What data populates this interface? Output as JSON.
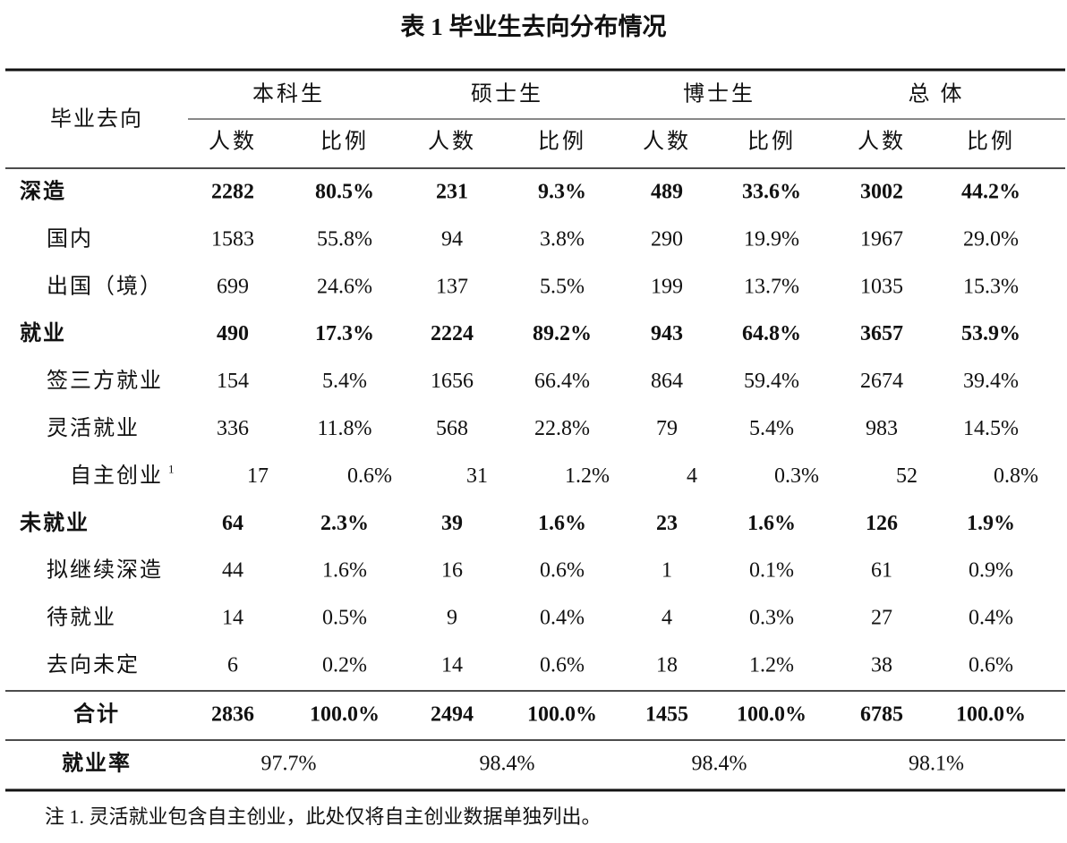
{
  "title": "表 1 毕业生去向分布情况",
  "table": {
    "corner": "毕业去向",
    "groups": [
      "本科生",
      "硕士生",
      "博士生",
      "总 体"
    ],
    "subheaders": [
      "人数",
      "比例",
      "人数",
      "比例",
      "人数",
      "比例",
      "人数",
      "比例"
    ],
    "rows": [
      {
        "label": "深造",
        "cells": [
          "2282",
          "80.5%",
          "231",
          "9.3%",
          "489",
          "33.6%",
          "3002",
          "44.2%"
        ],
        "children": [
          {
            "label": "国内",
            "cells": [
              "1583",
              "55.8%",
              "94",
              "3.8%",
              "290",
              "19.9%",
              "1967",
              "29.0%"
            ]
          },
          {
            "label": "出国（境）",
            "cells": [
              "699",
              "24.6%",
              "137",
              "5.5%",
              "199",
              "13.7%",
              "1035",
              "15.3%"
            ]
          }
        ]
      },
      {
        "label": "就业",
        "cells": [
          "490",
          "17.3%",
          "2224",
          "89.2%",
          "943",
          "64.8%",
          "3657",
          "53.9%"
        ],
        "children": [
          {
            "label": "签三方就业",
            "cells": [
              "154",
              "5.4%",
              "1656",
              "66.4%",
              "864",
              "59.4%",
              "2674",
              "39.4%"
            ]
          },
          {
            "label": "灵活就业",
            "cells": [
              "336",
              "11.8%",
              "568",
              "22.8%",
              "79",
              "5.4%",
              "983",
              "14.5%"
            ],
            "children": [
              {
                "label": "自主创业",
                "sup": "1",
                "cells": [
                  "17",
                  "0.6%",
                  "31",
                  "1.2%",
                  "4",
                  "0.3%",
                  "52",
                  "0.8%"
                ]
              }
            ]
          }
        ]
      },
      {
        "label": "未就业",
        "cells": [
          "64",
          "2.3%",
          "39",
          "1.6%",
          "23",
          "1.6%",
          "126",
          "1.9%"
        ],
        "children": [
          {
            "label": "拟继续深造",
            "cells": [
              "44",
              "1.6%",
              "16",
              "0.6%",
              "1",
              "0.1%",
              "61",
              "0.9%"
            ]
          },
          {
            "label": "待就业",
            "cells": [
              "14",
              "0.5%",
              "9",
              "0.4%",
              "4",
              "0.3%",
              "27",
              "0.4%"
            ]
          },
          {
            "label": "去向未定",
            "cells": [
              "6",
              "0.2%",
              "14",
              "0.6%",
              "18",
              "1.2%",
              "38",
              "0.6%"
            ]
          }
        ]
      }
    ],
    "total": {
      "label": "合计",
      "cells": [
        "2836",
        "100.0%",
        "2494",
        "100.0%",
        "1455",
        "100.0%",
        "6785",
        "100.0%"
      ]
    },
    "rate": {
      "label": "就业率",
      "cells": [
        "97.7%",
        "98.4%",
        "98.4%",
        "98.1%"
      ]
    }
  },
  "note": "注 1. 灵活就业包含自主创业，此处仅将自主创业数据单独列出。"
}
